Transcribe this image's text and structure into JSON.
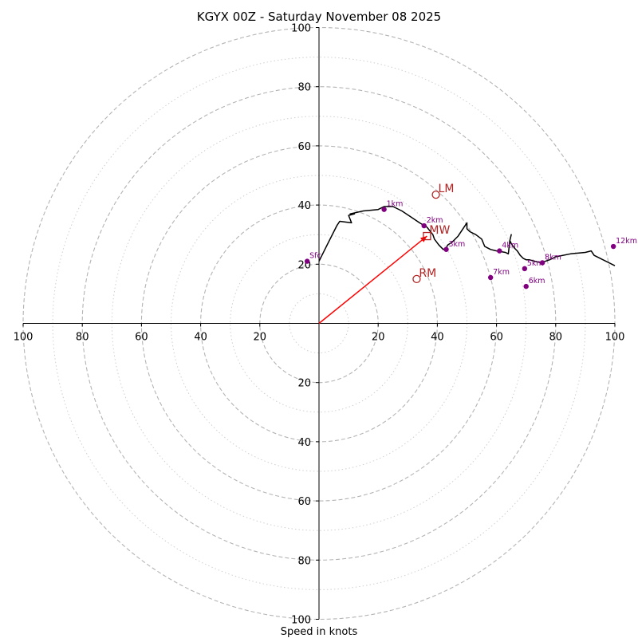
{
  "chart_data": {
    "type": "hodograph",
    "title": "KGYX 00Z - Saturday November 08 2025",
    "xlabel": "Speed in knots",
    "units": "knots",
    "range": [
      -100,
      100
    ],
    "ring_major": [
      20,
      40,
      60,
      80,
      100
    ],
    "ring_minor": [
      10,
      30,
      50,
      70,
      90
    ],
    "x_tick_labels": [
      "100",
      "80",
      "60",
      "40",
      "20",
      "20",
      "40",
      "60",
      "80",
      "100"
    ],
    "y_tick_labels_upper": [
      "20",
      "40",
      "60",
      "80",
      "100"
    ],
    "y_tick_labels_lower": [
      "20",
      "40",
      "60",
      "80",
      "100"
    ],
    "wind_profile": {
      "u": [
        0,
        3,
        6,
        7,
        11,
        10,
        12,
        10.5,
        15,
        20,
        22,
        25,
        28,
        31,
        34,
        36.5,
        38.5,
        39,
        40.5,
        42,
        43,
        43.5,
        45,
        47,
        49,
        50,
        50,
        50,
        51,
        53,
        55,
        56,
        57,
        58,
        60,
        63,
        64,
        64.5,
        65,
        64.5,
        65,
        66,
        67,
        68,
        69,
        70,
        71,
        73,
        75,
        78,
        80,
        85,
        90,
        92,
        93,
        95,
        100
      ],
      "v": [
        21,
        27,
        33,
        34.5,
        34,
        36.5,
        37,
        37,
        38,
        38.5,
        39.5,
        39.5,
        38,
        36,
        34,
        32.5,
        30,
        28.5,
        26.5,
        25,
        25.5,
        26.5,
        27.5,
        29.5,
        32.5,
        34,
        33,
        32,
        31,
        30,
        28.5,
        26,
        25.5,
        25,
        24.5,
        24,
        23.5,
        28,
        30,
        28,
        27,
        25.5,
        24.5,
        23,
        22,
        21.5,
        21.5,
        21,
        20.5,
        21.5,
        22.5,
        23.5,
        24,
        24.5,
        23,
        22,
        19.5
      ]
    },
    "height_markers": [
      {
        "label": "Sfc",
        "u": -4,
        "v": 21
      },
      {
        "label": "1km",
        "u": 22,
        "v": 38.5
      },
      {
        "label": "2km",
        "u": 35.5,
        "v": 33
      },
      {
        "label": "3km",
        "u": 43,
        "v": 25
      },
      {
        "label": "4km",
        "u": 61,
        "v": 24.5
      },
      {
        "label": "5km",
        "u": 69.5,
        "v": 18.5
      },
      {
        "label": "6km",
        "u": 70,
        "v": 12.5
      },
      {
        "label": "7km",
        "u": 58,
        "v": 15.5
      },
      {
        "label": "8km",
        "u": 75.5,
        "v": 20.5
      },
      {
        "label": "12km",
        "u": 99.5,
        "v": 26
      }
    ],
    "storm_motions": [
      {
        "label": "LM",
        "u": 39.5,
        "v": 43.5,
        "marker": "circle"
      },
      {
        "label": "MW",
        "u": 36.5,
        "v": 29.5,
        "marker": "square"
      },
      {
        "label": "RM",
        "u": 33,
        "v": 15,
        "marker": "circle"
      }
    ],
    "shear_vector": {
      "from_u": 0,
      "from_v": 0,
      "to_u": 36.5,
      "to_v": 29.5
    },
    "colors": {
      "profile": "#000000",
      "height_marker": "#800080",
      "storm_motion": "#b22222",
      "shear_vector": "#ff0000",
      "ring_major": "#b4b4b4",
      "ring_minor": "#cfcfcf",
      "axis": "#000000"
    }
  }
}
